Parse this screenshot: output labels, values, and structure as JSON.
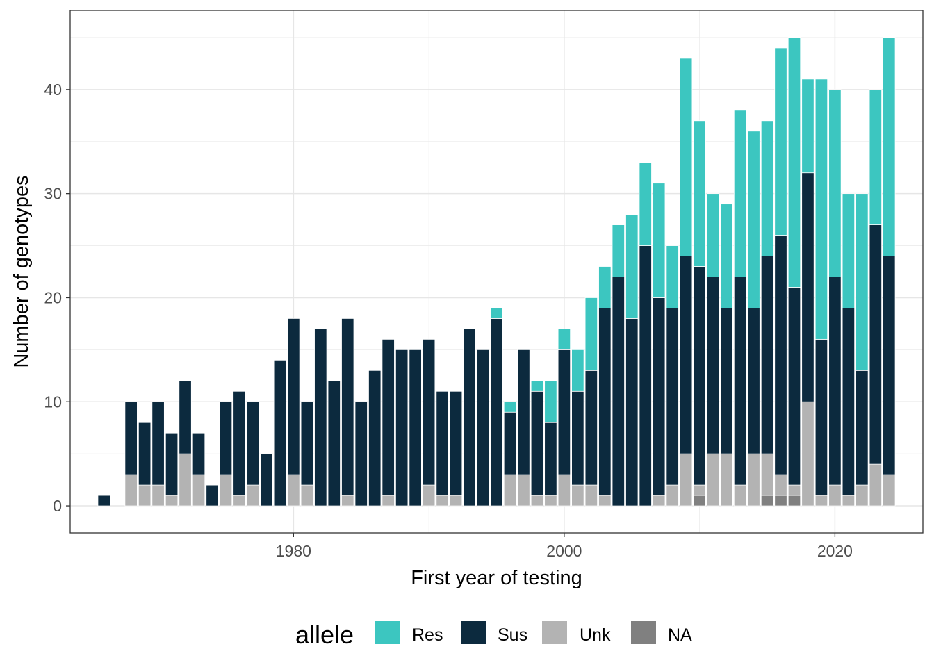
{
  "chart_data": {
    "type": "bar",
    "stacked": true,
    "xlabel": "First year of testing",
    "ylabel": "Number of genotypes",
    "xlim": [
      1963.5,
      2026.5
    ],
    "ylim": [
      -2.6,
      47.6
    ],
    "x_ticks": [
      1980,
      2000,
      2020
    ],
    "y_ticks": [
      0,
      10,
      20,
      30,
      40
    ],
    "x_tick_labels": [
      "1980",
      "2000",
      "2020"
    ],
    "y_tick_labels": [
      "0",
      "10",
      "20",
      "30",
      "40"
    ],
    "grid": true,
    "legend": {
      "title": "allele",
      "position": "bottom",
      "entries": [
        "Res",
        "Sus",
        "Unk",
        "NA"
      ]
    },
    "stack_order_bottom_to_top": [
      "NA",
      "Unk",
      "Sus",
      "Res"
    ],
    "colors": {
      "Res": "#3CC6C0",
      "Sus": "#0C2A3E",
      "Unk": "#B3B3B3",
      "NA": "#808080"
    },
    "x": [
      1966,
      1968,
      1969,
      1970,
      1971,
      1972,
      1973,
      1974,
      1975,
      1976,
      1977,
      1978,
      1979,
      1980,
      1981,
      1982,
      1983,
      1984,
      1985,
      1986,
      1987,
      1988,
      1989,
      1990,
      1991,
      1992,
      1993,
      1994,
      1995,
      1996,
      1997,
      1998,
      1999,
      2000,
      2001,
      2002,
      2003,
      2004,
      2005,
      2006,
      2007,
      2008,
      2009,
      2010,
      2011,
      2012,
      2013,
      2014,
      2015,
      2016,
      2017,
      2018,
      2019,
      2020,
      2021,
      2022,
      2023,
      2024
    ],
    "series": [
      {
        "name": "NA",
        "values": [
          0,
          0,
          0,
          0,
          0,
          0,
          0,
          0,
          0,
          0,
          0,
          0,
          0,
          0,
          0,
          0,
          0,
          0,
          0,
          0,
          0,
          0,
          0,
          0,
          0,
          0,
          0,
          0,
          0,
          0,
          0,
          0,
          0,
          0,
          0,
          0,
          0,
          0,
          0,
          0,
          0,
          0,
          0,
          1,
          0,
          0,
          0,
          0,
          1,
          1,
          1,
          0,
          0,
          0,
          0,
          0,
          0,
          0
        ]
      },
      {
        "name": "Unk",
        "values": [
          0,
          3,
          2,
          2,
          1,
          5,
          3,
          0,
          3,
          1,
          2,
          0,
          0,
          3,
          2,
          0,
          0,
          1,
          0,
          0,
          1,
          0,
          0,
          2,
          1,
          1,
          0,
          0,
          0,
          3,
          3,
          1,
          1,
          3,
          2,
          2,
          1,
          0,
          0,
          0,
          1,
          2,
          5,
          1,
          5,
          5,
          2,
          5,
          4,
          2,
          1,
          10,
          1,
          2,
          1,
          2,
          4,
          3
        ]
      },
      {
        "name": "Sus",
        "values": [
          1,
          7,
          6,
          8,
          6,
          7,
          4,
          2,
          7,
          10,
          8,
          5,
          14,
          15,
          8,
          17,
          12,
          17,
          10,
          13,
          15,
          15,
          15,
          14,
          10,
          10,
          17,
          15,
          18,
          6,
          12,
          10,
          7,
          12,
          9,
          11,
          18,
          22,
          18,
          25,
          19,
          17,
          19,
          21,
          17,
          14,
          20,
          14,
          19,
          23,
          19,
          22,
          15,
          20,
          18,
          11,
          23,
          21
        ]
      },
      {
        "name": "Res",
        "values": [
          0,
          0,
          0,
          0,
          0,
          0,
          0,
          0,
          0,
          0,
          0,
          0,
          0,
          0,
          0,
          0,
          0,
          0,
          0,
          0,
          0,
          0,
          0,
          0,
          0,
          0,
          0,
          0,
          1,
          1,
          0,
          1,
          4,
          2,
          4,
          7,
          4,
          5,
          10,
          8,
          11,
          6,
          19,
          14,
          8,
          10,
          16,
          17,
          13,
          18,
          24,
          9,
          25,
          18,
          11,
          17,
          13,
          21
        ]
      }
    ]
  }
}
